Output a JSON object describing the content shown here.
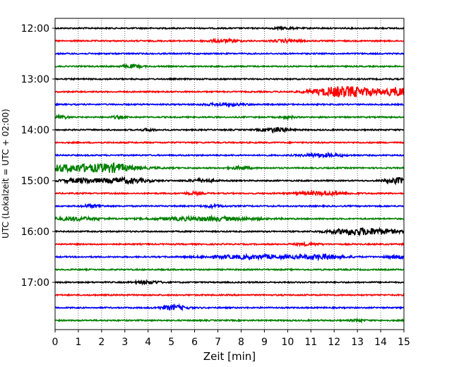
{
  "chart_data": {
    "type": "line",
    "subtype": "helicorder",
    "title": "",
    "xlabel": "Zeit  [min]",
    "ylabel": "UTC (Lokalzeit = UTC + 02:00)",
    "xlim": [
      0,
      15
    ],
    "x_ticks": [
      0,
      1,
      2,
      3,
      4,
      5,
      6,
      7,
      8,
      9,
      10,
      11,
      12,
      13,
      14,
      15
    ],
    "x_tick_labels": [
      "0",
      "1",
      "2",
      "3",
      "4",
      "5",
      "6",
      "7",
      "8",
      "9",
      "10",
      "11",
      "12",
      "13",
      "14",
      "15"
    ],
    "y_tick_labels": [
      "12:00",
      "13:00",
      "14:00",
      "15:00",
      "16:00",
      "17:00"
    ],
    "trace_interval_min": 15,
    "vertical_gridlines": true,
    "trace_colors": [
      "#000000",
      "#ff0000",
      "#0000ff",
      "#008000"
    ],
    "traces": [
      {
        "start": "12:00",
        "color": "#000000",
        "events": [
          [
            9.8,
            0.3,
            1.4
          ]
        ]
      },
      {
        "start": "12:15",
        "color": "#ff0000",
        "events": [
          [
            7.2,
            0.5,
            1.8
          ],
          [
            10.0,
            0.4,
            1.8
          ]
        ]
      },
      {
        "start": "12:30",
        "color": "#0000ff",
        "events": []
      },
      {
        "start": "12:45",
        "color": "#008000",
        "events": [
          [
            3.3,
            0.3,
            2.0
          ]
        ]
      },
      {
        "start": "13:00",
        "color": "#000000",
        "events": []
      },
      {
        "start": "13:15",
        "color": "#ff0000",
        "events": [
          [
            12.1,
            0.8,
            5.0
          ],
          [
            13.2,
            0.9,
            4.0
          ],
          [
            14.8,
            0.4,
            5.0
          ]
        ]
      },
      {
        "start": "13:30",
        "color": "#0000ff",
        "events": [
          [
            7.3,
            0.6,
            1.6
          ]
        ]
      },
      {
        "start": "13:45",
        "color": "#008000",
        "events": [
          [
            0.3,
            0.2,
            2.0
          ],
          [
            2.7,
            0.2,
            1.6
          ],
          [
            10.0,
            0.2,
            1.6
          ]
        ]
      },
      {
        "start": "14:00",
        "color": "#000000",
        "events": [
          [
            9.5,
            0.4,
            3.2
          ],
          [
            4.0,
            0.2,
            1.5
          ]
        ]
      },
      {
        "start": "14:15",
        "color": "#ff0000",
        "events": []
      },
      {
        "start": "14:30",
        "color": "#0000ff",
        "events": [
          [
            11.5,
            0.6,
            2.2
          ]
        ]
      },
      {
        "start": "14:45",
        "color": "#008000",
        "events": [
          [
            1.0,
            1.6,
            5.0
          ],
          [
            2.6,
            0.5,
            3.0
          ],
          [
            8.0,
            0.3,
            2.0
          ]
        ]
      },
      {
        "start": "15:00",
        "color": "#000000",
        "events": [
          [
            1.2,
            0.6,
            3.0
          ],
          [
            3.0,
            0.7,
            3.5
          ],
          [
            6.3,
            0.4,
            2.0
          ],
          [
            14.8,
            0.4,
            4.0
          ]
        ]
      },
      {
        "start": "15:15",
        "color": "#ff0000",
        "events": [
          [
            11.5,
            0.8,
            2.2
          ],
          [
            6.0,
            0.3,
            1.5
          ]
        ]
      },
      {
        "start": "15:30",
        "color": "#0000ff",
        "events": [
          [
            1.6,
            0.3,
            1.8
          ],
          [
            6.8,
            0.3,
            1.6
          ]
        ]
      },
      {
        "start": "15:45",
        "color": "#008000",
        "events": [
          [
            0.8,
            0.8,
            2.2
          ],
          [
            6.5,
            1.5,
            2.6
          ]
        ]
      },
      {
        "start": "16:00",
        "color": "#000000",
        "events": [
          [
            12.7,
            0.7,
            3.5
          ],
          [
            13.9,
            0.7,
            3.0
          ]
        ]
      },
      {
        "start": "16:15",
        "color": "#ff0000",
        "events": [
          [
            10.8,
            0.4,
            1.5
          ]
        ]
      },
      {
        "start": "16:30",
        "color": "#0000ff",
        "events": [
          [
            8.5,
            1.4,
            2.4
          ],
          [
            11.5,
            0.7,
            2.8
          ],
          [
            14.7,
            0.3,
            2.0
          ]
        ]
      },
      {
        "start": "16:45",
        "color": "#008000",
        "events": []
      },
      {
        "start": "17:00",
        "color": "#000000",
        "events": [
          [
            4.0,
            0.4,
            2.0
          ]
        ]
      },
      {
        "start": "17:15",
        "color": "#ff0000",
        "events": []
      },
      {
        "start": "17:30",
        "color": "#0000ff",
        "events": [
          [
            5.1,
            0.4,
            3.2
          ]
        ]
      },
      {
        "start": "17:45",
        "color": "#008000",
        "events": [
          [
            13.0,
            0.2,
            1.5
          ]
        ]
      }
    ]
  }
}
